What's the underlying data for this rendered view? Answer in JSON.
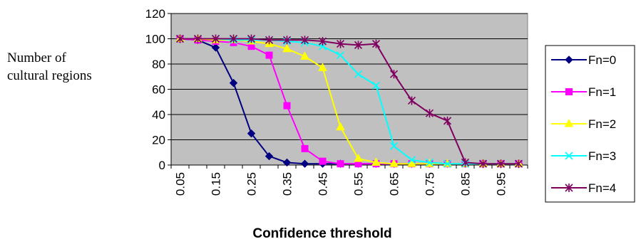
{
  "chart_data": {
    "type": "line",
    "xlabel": "Confidence threshold",
    "ylabel_lines": [
      "Number of",
      "cultural regions"
    ],
    "ylim": [
      0,
      120
    ],
    "yticks": [
      0,
      20,
      40,
      60,
      80,
      100,
      120
    ],
    "x": [
      "0.05",
      "0.1",
      "0.15",
      "0.2",
      "0.25",
      "0.3",
      "0.35",
      "0.4",
      "0.45",
      "0.5",
      "0.55",
      "0.6",
      "0.65",
      "0.7",
      "0.75",
      "0.8",
      "0.85",
      "0.9",
      "0.95",
      "1"
    ],
    "x_tick_labels": [
      "0.05",
      "0.15",
      "0.25",
      "0.35",
      "0.45",
      "0.55",
      "0.65",
      "0.75",
      "0.85",
      "0.95"
    ],
    "grid": "horizontal",
    "legend": "right",
    "plot_background": "#c0c0c0",
    "series": [
      {
        "name": "Fn=0",
        "color": "#000080",
        "marker": "diamond",
        "values": [
          100,
          99,
          93,
          65,
          25,
          7,
          2,
          1,
          1,
          1,
          1,
          1,
          1,
          1,
          1,
          1,
          1,
          1,
          1,
          1
        ]
      },
      {
        "name": "Fn=1",
        "color": "#ff00ff",
        "marker": "square",
        "values": [
          100,
          99,
          98,
          97,
          94,
          87,
          47,
          13,
          3,
          1,
          1,
          1,
          1,
          1,
          1,
          1,
          1,
          1,
          1,
          1
        ]
      },
      {
        "name": "Fn=2",
        "color": "#ffff00",
        "marker": "triangle",
        "values": [
          100,
          100,
          99,
          99,
          98,
          96,
          92,
          86,
          77,
          30,
          5,
          2,
          1,
          1,
          1,
          1,
          1,
          1,
          1,
          1
        ]
      },
      {
        "name": "Fn=3",
        "color": "#00ffff",
        "marker": "x",
        "values": [
          100,
          100,
          100,
          99,
          99,
          99,
          98,
          97,
          94,
          87,
          72,
          63,
          15,
          4,
          2,
          1,
          1,
          1,
          1,
          1
        ]
      },
      {
        "name": "Fn=4",
        "color": "#800060",
        "marker": "star",
        "values": [
          100,
          100,
          100,
          100,
          100,
          99,
          99,
          99,
          98,
          96,
          95,
          96,
          72,
          51,
          41,
          35,
          2,
          1,
          1,
          1
        ]
      }
    ]
  }
}
